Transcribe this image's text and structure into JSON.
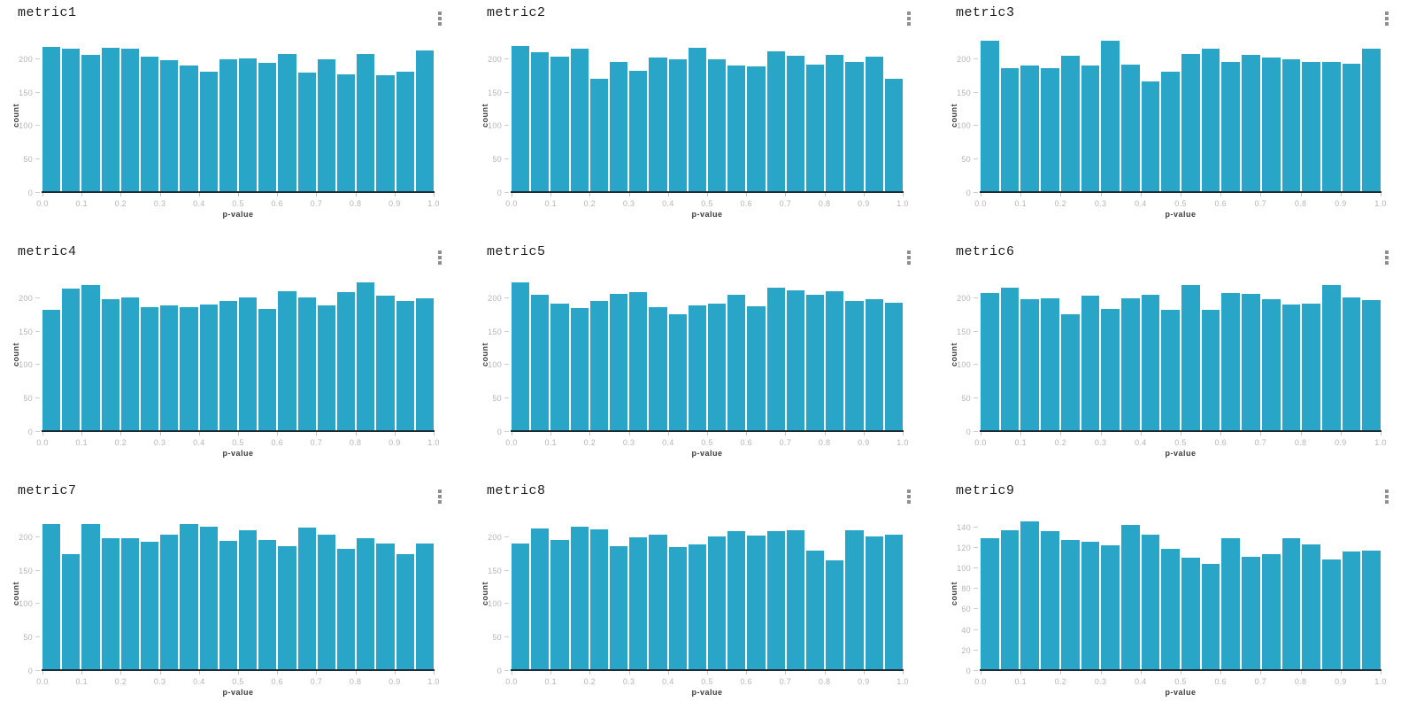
{
  "colors": {
    "bar": "#29a6c7",
    "axis_line": "#1c2b36",
    "tick_label": "#b5b5b5",
    "axis_label": "#3d3d3d",
    "background": "#ffffff",
    "kebab_icon": "#8f8f8f"
  },
  "icons": {
    "panel_menu": "kebab-vertical-icon"
  },
  "chart_data": [
    {
      "type": "bar",
      "title": "metric1",
      "xlabel": "p-value",
      "ylabel": "count",
      "bin_start": 0.0,
      "bin_width": 0.05,
      "x_tick_labels": [
        "0.0",
        "0.1",
        "0.2",
        "0.3",
        "0.4",
        "0.5",
        "0.6",
        "0.7",
        "0.8",
        "0.9",
        "1.0"
      ],
      "y_tick_values": [
        0,
        50,
        100,
        150,
        200
      ],
      "ylim": [
        0,
        230
      ],
      "grid": false,
      "values": [
        218,
        215,
        206,
        217,
        215,
        203,
        198,
        190,
        181,
        199,
        201,
        194,
        208,
        180,
        199,
        177,
        208,
        176,
        181,
        213
      ]
    },
    {
      "type": "bar",
      "title": "metric2",
      "xlabel": "p-value",
      "ylabel": "count",
      "bin_start": 0.0,
      "bin_width": 0.05,
      "x_tick_labels": [
        "0.0",
        "0.1",
        "0.2",
        "0.3",
        "0.4",
        "0.5",
        "0.6",
        "0.7",
        "0.8",
        "0.9",
        "1.0"
      ],
      "y_tick_values": [
        0,
        50,
        100,
        150,
        200
      ],
      "ylim": [
        0,
        230
      ],
      "grid": false,
      "values": [
        220,
        210,
        203,
        216,
        171,
        196,
        182,
        202,
        199,
        217,
        199,
        190,
        189,
        212,
        205,
        192,
        206,
        196,
        204,
        170
      ]
    },
    {
      "type": "bar",
      "title": "metric3",
      "xlabel": "p-value",
      "ylabel": "count",
      "bin_start": 0.0,
      "bin_width": 0.05,
      "x_tick_labels": [
        "0.0",
        "0.1",
        "0.2",
        "0.3",
        "0.4",
        "0.5",
        "0.6",
        "0.7",
        "0.8",
        "0.9",
        "1.0"
      ],
      "y_tick_values": [
        0,
        50,
        100,
        150,
        200
      ],
      "ylim": [
        0,
        230
      ],
      "grid": false,
      "values": [
        228,
        186,
        190,
        187,
        205,
        190,
        227,
        192,
        166,
        181,
        208,
        216,
        196,
        206,
        202,
        199,
        195,
        196,
        193,
        215
      ]
    },
    {
      "type": "bar",
      "title": "metric4",
      "xlabel": "p-value",
      "ylabel": "count",
      "bin_start": 0.0,
      "bin_width": 0.05,
      "x_tick_labels": [
        "0.0",
        "0.1",
        "0.2",
        "0.3",
        "0.4",
        "0.5",
        "0.6",
        "0.7",
        "0.8",
        "0.9",
        "1.0"
      ],
      "y_tick_values": [
        0,
        50,
        100,
        150,
        200
      ],
      "ylim": [
        0,
        230
      ],
      "grid": false,
      "values": [
        182,
        214,
        220,
        198,
        201,
        187,
        189,
        187,
        190,
        196,
        201,
        184,
        210,
        201,
        189,
        209,
        223,
        203,
        196,
        200
      ]
    },
    {
      "type": "bar",
      "title": "metric5",
      "xlabel": "p-value",
      "ylabel": "count",
      "bin_start": 0.0,
      "bin_width": 0.05,
      "x_tick_labels": [
        "0.0",
        "0.1",
        "0.2",
        "0.3",
        "0.4",
        "0.5",
        "0.6",
        "0.7",
        "0.8",
        "0.9",
        "1.0"
      ],
      "y_tick_values": [
        0,
        50,
        100,
        150,
        200
      ],
      "ylim": [
        0,
        230
      ],
      "grid": false,
      "values": [
        224,
        205,
        192,
        185,
        195,
        206,
        209,
        186,
        176,
        189,
        192,
        205,
        188,
        215,
        212,
        205,
        210,
        195,
        198,
        193
      ]
    },
    {
      "type": "bar",
      "title": "metric6",
      "xlabel": "p-value",
      "ylabel": "count",
      "bin_start": 0.0,
      "bin_width": 0.05,
      "x_tick_labels": [
        "0.0",
        "0.1",
        "0.2",
        "0.3",
        "0.4",
        "0.5",
        "0.6",
        "0.7",
        "0.8",
        "0.9",
        "1.0"
      ],
      "y_tick_values": [
        0,
        50,
        100,
        150,
        200
      ],
      "ylim": [
        0,
        230
      ],
      "grid": false,
      "values": [
        208,
        215,
        198,
        199,
        176,
        203,
        184,
        199,
        205,
        182,
        220,
        183,
        207,
        206,
        198,
        191,
        192,
        219,
        201,
        197
      ]
    },
    {
      "type": "bar",
      "title": "metric7",
      "xlabel": "p-value",
      "ylabel": "count",
      "bin_start": 0.0,
      "bin_width": 0.05,
      "x_tick_labels": [
        "0.0",
        "0.1",
        "0.2",
        "0.3",
        "0.4",
        "0.5",
        "0.6",
        "0.7",
        "0.8",
        "0.9",
        "1.0"
      ],
      "y_tick_values": [
        0,
        50,
        100,
        150,
        200
      ],
      "ylim": [
        0,
        230
      ],
      "grid": false,
      "values": [
        219,
        175,
        219,
        198,
        198,
        193,
        203,
        220,
        216,
        194,
        210,
        196,
        186,
        214,
        204,
        183,
        198,
        190,
        174,
        191
      ]
    },
    {
      "type": "bar",
      "title": "metric8",
      "xlabel": "p-value",
      "ylabel": "count",
      "bin_start": 0.0,
      "bin_width": 0.05,
      "x_tick_labels": [
        "0.0",
        "0.1",
        "0.2",
        "0.3",
        "0.4",
        "0.5",
        "0.6",
        "0.7",
        "0.8",
        "0.9",
        "1.0"
      ],
      "y_tick_values": [
        0,
        50,
        100,
        150,
        200
      ],
      "ylim": [
        0,
        230
      ],
      "grid": false,
      "values": [
        190,
        213,
        196,
        215,
        211,
        187,
        200,
        204,
        185,
        189,
        201,
        209,
        202,
        209,
        210,
        180,
        165,
        210,
        201,
        204
      ]
    },
    {
      "type": "bar",
      "title": "metric9",
      "xlabel": "p-value",
      "ylabel": "count",
      "bin_start": 0.0,
      "bin_width": 0.05,
      "x_tick_labels": [
        "0.0",
        "0.1",
        "0.2",
        "0.3",
        "0.4",
        "0.5",
        "0.6",
        "0.7",
        "0.8",
        "0.9",
        "1.0"
      ],
      "y_tick_values": [
        0,
        20,
        40,
        60,
        80,
        100,
        120,
        140
      ],
      "ylim": [
        0,
        150
      ],
      "grid": false,
      "values": [
        129,
        137,
        146,
        136,
        128,
        126,
        122,
        142,
        133,
        119,
        110,
        104,
        129,
        111,
        114,
        129,
        123,
        109,
        116,
        117
      ]
    }
  ]
}
